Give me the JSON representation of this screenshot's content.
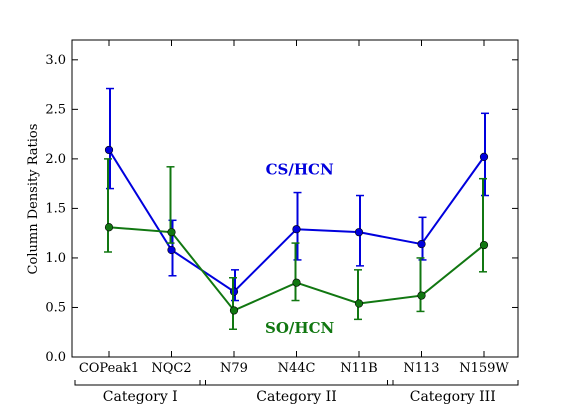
{
  "chart_data": {
    "type": "line",
    "title": "",
    "xlabel": "",
    "ylabel": "Column Density Ratios",
    "ylim": [
      0.0,
      3.2
    ],
    "yticks": [
      "0.0",
      "0.5",
      "1.0",
      "1.5",
      "2.0",
      "2.5",
      "3.0"
    ],
    "yticks_values": [
      0.0,
      0.5,
      1.0,
      1.5,
      2.0,
      2.5,
      3.0
    ],
    "categories": [
      "COPeak1",
      "NQC2",
      "N79",
      "N44C",
      "N11B",
      "N113",
      "N159W"
    ],
    "groups": [
      {
        "label": "Category I",
        "from": 0,
        "to": 1
      },
      {
        "label": "Category II",
        "from": 2,
        "to": 4
      },
      {
        "label": "Category III",
        "from": 5,
        "to": 6
      }
    ],
    "grid": false,
    "series": [
      {
        "name": "CS/HCN",
        "color": "#0000dd",
        "values": [
          2.09,
          1.08,
          0.66,
          1.29,
          1.26,
          1.14,
          2.02
        ],
        "err_low": [
          1.7,
          0.82,
          0.57,
          0.98,
          0.92,
          0.98,
          1.63
        ],
        "err_high": [
          2.71,
          1.38,
          0.88,
          1.66,
          1.63,
          1.41,
          2.46
        ]
      },
      {
        "name": "SO/HCN",
        "color": "#117711",
        "values": [
          1.31,
          1.26,
          0.47,
          0.75,
          0.54,
          0.62,
          1.13
        ],
        "err_low": [
          1.06,
          1.15,
          0.28,
          0.57,
          0.38,
          0.46,
          0.86
        ],
        "err_high": [
          2.0,
          1.92,
          0.8,
          1.15,
          0.88,
          1.0,
          1.8
        ]
      }
    ],
    "annotations": [
      {
        "text": "CS/HCN",
        "x": 3.05,
        "y": 1.84,
        "series": 0
      },
      {
        "text": "SO/HCN",
        "x": 3.05,
        "y": 0.24,
        "series": 1
      }
    ]
  }
}
